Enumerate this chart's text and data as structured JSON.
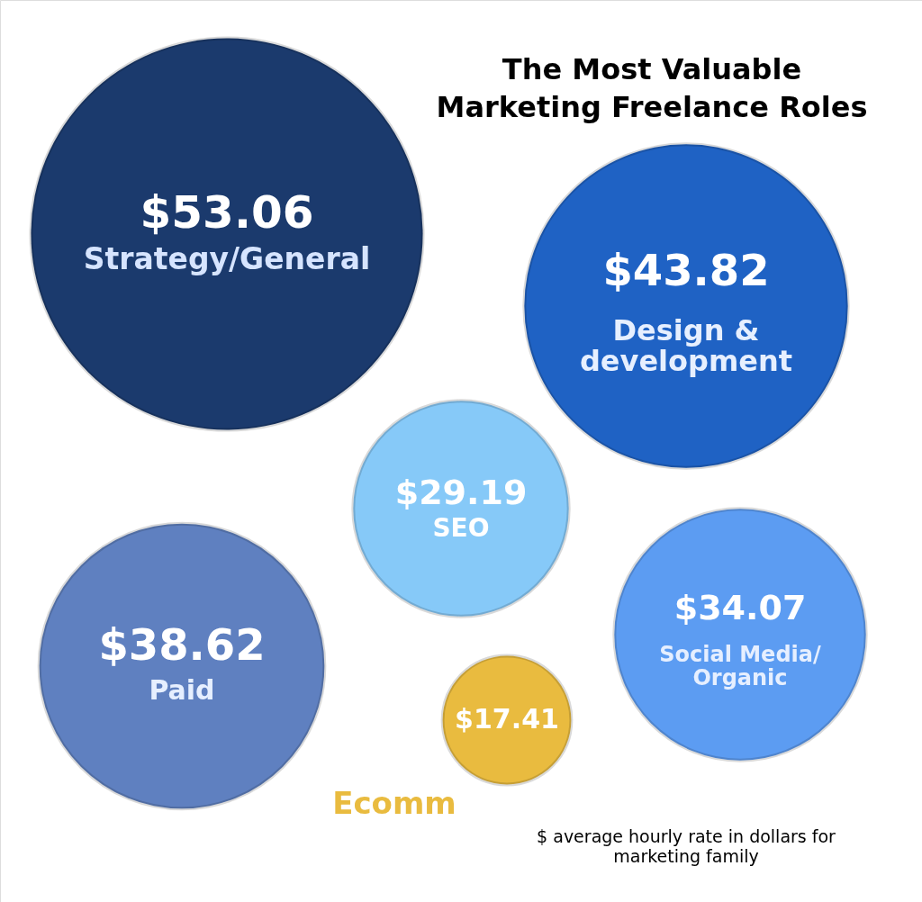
{
  "chart_data": {
    "type": "other",
    "title": "The Most Valuable Marketing Freelance Roles",
    "categories": [
      "Strategy/General",
      "Design & development",
      "SEO",
      "Paid",
      "Social Media/Organic",
      "Ecomm"
    ],
    "values": [
      53.06,
      43.82,
      29.19,
      38.62,
      34.07,
      17.41
    ],
    "value_labels": [
      "$53.06",
      "$43.82",
      "$29.19",
      "$38.62",
      "$34.07",
      "$17.41"
    ],
    "colors": [
      "#1b3a6d",
      "#1f62c4",
      "#86c9f8",
      "#5f80c0",
      "#5c9cf2",
      "#e9bb3f"
    ],
    "annotations": [
      "$ average hourly rate in dollars for marketing family"
    ]
  }
}
